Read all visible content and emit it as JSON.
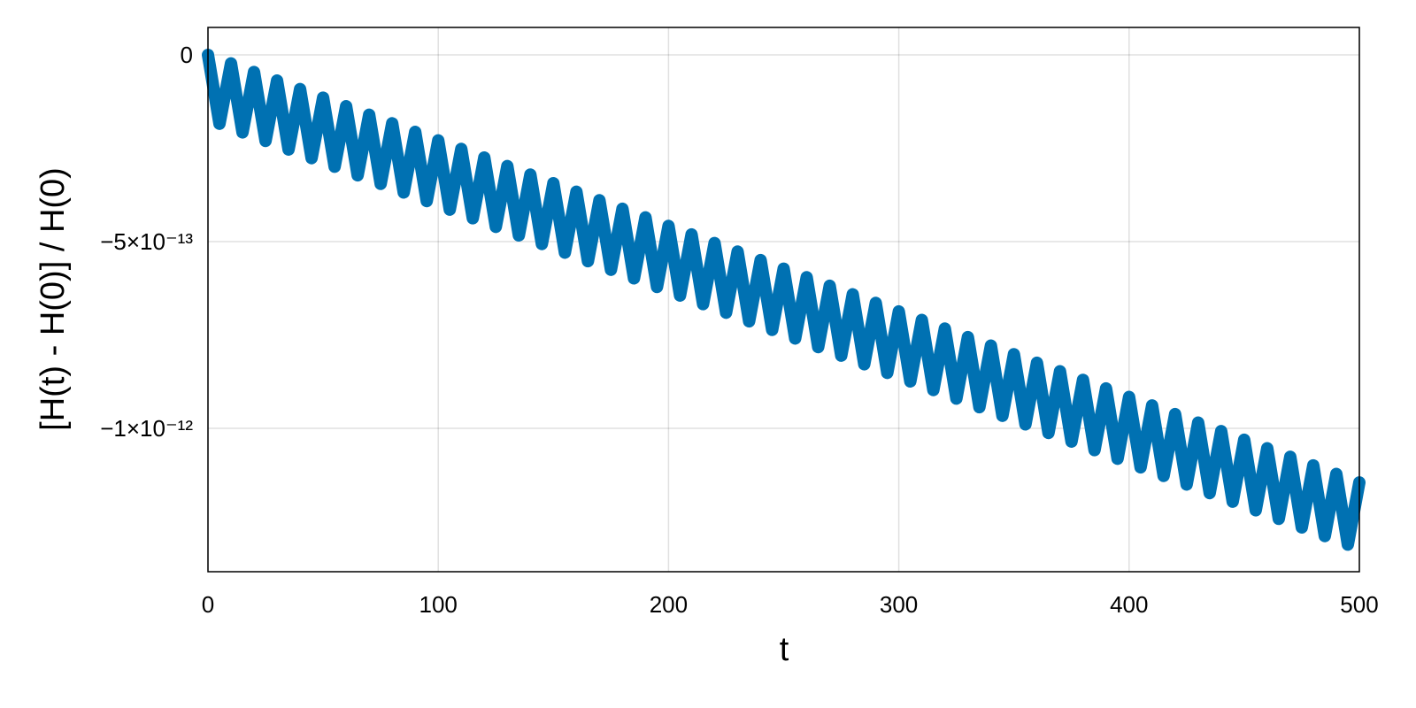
{
  "chart_data": {
    "type": "line",
    "xlabel": "t",
    "ylabel": "[H(t) - H(0)] / H(0)",
    "x": [
      0,
      5,
      10,
      15,
      20,
      25,
      30,
      35,
      40,
      45,
      50,
      55,
      60,
      65,
      70,
      75,
      80,
      85,
      90,
      95,
      100,
      105,
      110,
      115,
      120,
      125,
      130,
      135,
      140,
      145,
      150,
      155,
      160,
      165,
      170,
      175,
      180,
      185,
      190,
      195,
      200,
      205,
      210,
      215,
      220,
      225,
      230,
      235,
      240,
      245,
      250,
      255,
      260,
      265,
      270,
      275,
      280,
      285,
      290,
      295,
      300,
      305,
      310,
      315,
      320,
      325,
      330,
      335,
      340,
      345,
      350,
      355,
      360,
      365,
      370,
      375,
      380,
      385,
      390,
      395,
      400,
      405,
      410,
      415,
      420,
      425,
      430,
      435,
      440,
      445,
      450,
      455,
      460,
      465,
      470,
      475,
      480,
      485,
      490,
      495,
      500
    ],
    "series": [
      {
        "color": "#0071b2",
        "values": [
          0,
          -1.845e-13,
          -2.29e-14,
          -2.075e-13,
          -4.58e-14,
          -2.305e-13,
          -6.87e-14,
          -2.535e-13,
          -9.16e-14,
          -2.765e-13,
          -1.145e-13,
          -2.995e-13,
          -1.374e-13,
          -3.225e-13,
          -1.603e-13,
          -3.455e-13,
          -1.832e-13,
          -3.685e-13,
          -2.061e-13,
          -3.915e-13,
          -2.29e-13,
          -4.145e-13,
          -2.519e-13,
          -4.375e-13,
          -2.748e-13,
          -4.605e-13,
          -2.977e-13,
          -4.835e-13,
          -3.206e-13,
          -5.065e-13,
          -3.435e-13,
          -5.295e-13,
          -3.664e-13,
          -5.525e-13,
          -3.893e-13,
          -5.755e-13,
          -4.122e-13,
          -5.985e-13,
          -4.351e-13,
          -6.215e-13,
          -4.58e-13,
          -6.445e-13,
          -4.809e-13,
          -6.675e-13,
          -5.038e-13,
          -6.905e-13,
          -5.267e-13,
          -7.135e-13,
          -5.496e-13,
          -7.365e-13,
          -5.725e-13,
          -7.595e-13,
          -5.954e-13,
          -7.825e-13,
          -6.183e-13,
          -8.055e-13,
          -6.412e-13,
          -8.285e-13,
          -6.641e-13,
          -8.515e-13,
          -6.87e-13,
          -8.745e-13,
          -7.099e-13,
          -8.975e-13,
          -7.328e-13,
          -9.205e-13,
          -7.557e-13,
          -9.435e-13,
          -7.786e-13,
          -9.665e-13,
          -8.015e-13,
          -9.895e-13,
          -8.244e-13,
          -1.0125e-12,
          -8.473e-13,
          -1.0355e-12,
          -8.702e-13,
          -1.0585e-12,
          -8.931e-13,
          -1.0815e-12,
          -9.16e-13,
          -1.1045e-12,
          -9.389e-13,
          -1.1275e-12,
          -9.618e-13,
          -1.1505e-12,
          -9.847e-13,
          -1.1735e-12,
          -1.0076e-12,
          -1.1965e-12,
          -1.0305e-12,
          -1.2195e-12,
          -1.0534e-12,
          -1.2425e-12,
          -1.0763e-12,
          -1.2655e-12,
          -1.0992e-12,
          -1.2885e-12,
          -1.1221e-12,
          -1.3115e-12,
          -1.145e-12
        ]
      }
    ],
    "xlim": [
      0,
      500
    ],
    "xticks": [
      0,
      100,
      200,
      300,
      400,
      500
    ],
    "ylim": [
      -1.384e-12,
      7.35e-14
    ],
    "yticks": [
      {
        "value": -1e-12,
        "label": "−1×10⁻¹²"
      },
      {
        "value": -5e-13,
        "label": "−5×10⁻¹³"
      },
      0
    ],
    "grid": true
  }
}
